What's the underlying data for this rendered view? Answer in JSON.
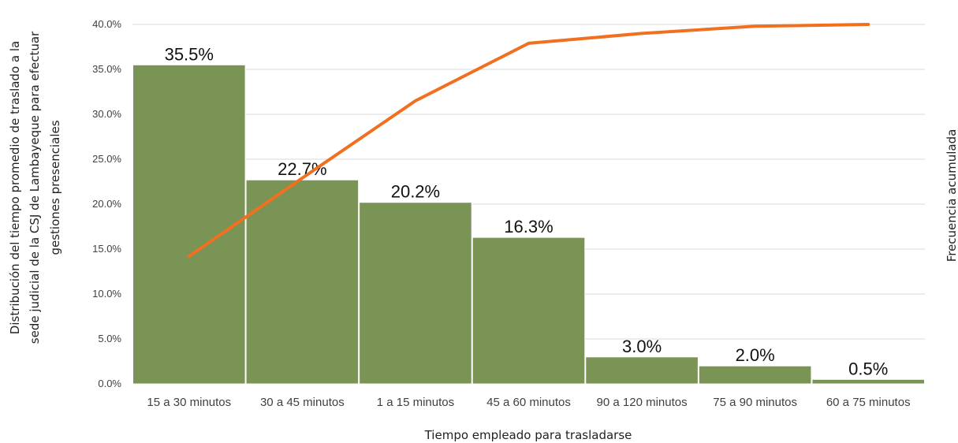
{
  "chart_data": {
    "type": "bar",
    "categories": [
      "15 a 30 minutos",
      "30 a 45 minutos",
      "1 a 15 minutos",
      "45 a 60 minutos",
      "90 a 120 minutos",
      "75 a 90 minutos",
      "60 a 75 minutos"
    ],
    "series": [
      {
        "type": "bar",
        "values": [
          35.5,
          22.7,
          20.2,
          16.3,
          3.0,
          2.0,
          0.5
        ],
        "data_labels": [
          "35.5%",
          "22.7%",
          "20.2%",
          "16.3%",
          "3.0%",
          "2.0%",
          "0.5%"
        ],
        "color": "#7a9455"
      },
      {
        "type": "line",
        "values": [
          14.2,
          22.9,
          31.5,
          37.9,
          39.0,
          39.8,
          40.0
        ],
        "color": "#f07020"
      }
    ],
    "ylabel_lines": [
      "Distribución del tiempo promedio de traslado a la",
      "sede judicial de la CSJ de Lambayeque para efectuar",
      "gestiones presenciales"
    ],
    "y2label": "Frecuencia acumulada",
    "xlabel": "Tiempo empleado para trasladarse",
    "ylim": [
      0,
      40
    ],
    "yticks": [
      "0.0%",
      "5.0%",
      "10.0%",
      "15.0%",
      "20.0%",
      "25.0%",
      "30.0%",
      "35.0%",
      "40.0%"
    ],
    "grid": true,
    "legend": "none"
  }
}
